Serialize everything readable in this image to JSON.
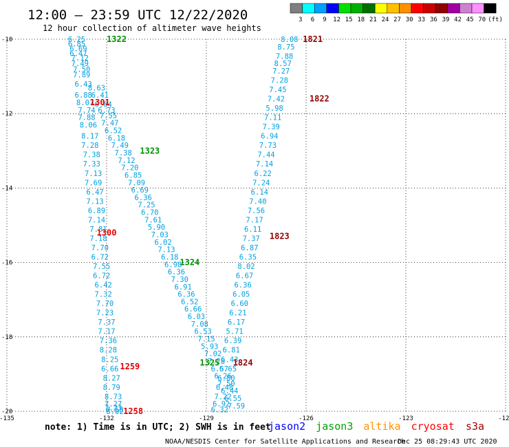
{
  "header": {
    "title": "12:00 – 23:59 UTC 12/22/2020",
    "subtitle": "12 hour collection of altimeter wave heights"
  },
  "colorbar": {
    "bins": [
      {
        "label": "3",
        "color": "#7f7f7f"
      },
      {
        "label": "6",
        "color": "#00ffff"
      },
      {
        "label": "9",
        "color": "#00a0ff"
      },
      {
        "label": "12",
        "color": "#0000ff"
      },
      {
        "label": "15",
        "color": "#00e000"
      },
      {
        "label": "18",
        "color": "#00b000"
      },
      {
        "label": "21",
        "color": "#006f00"
      },
      {
        "label": "24",
        "color": "#ffff00"
      },
      {
        "label": "27",
        "color": "#ffc000"
      },
      {
        "label": "30",
        "color": "#ff9000"
      },
      {
        "label": "33",
        "color": "#ff0000"
      },
      {
        "label": "36",
        "color": "#c80000"
      },
      {
        "label": "39",
        "color": "#900000"
      },
      {
        "label": "42",
        "color": "#a000a0"
      },
      {
        "label": "45",
        "color": "#d080d0"
      },
      {
        "label": "70",
        "color": "#ff90ff"
      },
      {
        "label": "",
        "color": "#000000"
      }
    ],
    "unit": "(ft)"
  },
  "footer": {
    "note": "note: 1) Time is in UTC; 2) SWH is in feet",
    "credit": "NOAA/NESDIS Center for Satellite Applications and Research",
    "timestamp": "Dec 25 08:29:43 UTC 2020",
    "legend": [
      {
        "name": "jason2",
        "color": "#0000ff"
      },
      {
        "name": "jason3",
        "color": "#00a000"
      },
      {
        "name": "altika",
        "color": "#ff9000"
      },
      {
        "name": "cryosat",
        "color": "#ff0000"
      },
      {
        "name": "s3a",
        "color": "#a00000"
      }
    ]
  },
  "chart_data": {
    "type": "scatter",
    "x_ticks": [
      "-135",
      "-132",
      "-129",
      "-126",
      "-123",
      "-120"
    ],
    "y_ticks": [
      "-10",
      "-12",
      "-14",
      "-16",
      "-18",
      "-20"
    ],
    "xlim": [
      -135,
      -120
    ],
    "ylim": [
      -20,
      -10
    ],
    "grid": true,
    "track_labels": [
      {
        "text": "1322",
        "lon": -131.7,
        "lat": -10.0,
        "color": "#009000"
      },
      {
        "text": "1301",
        "lon": -132.2,
        "lat": -11.7,
        "color": "#e00000"
      },
      {
        "text": "1323",
        "lon": -130.7,
        "lat": -13.0,
        "color": "#009000"
      },
      {
        "text": "1300",
        "lon": -132.0,
        "lat": -15.2,
        "color": "#e00000"
      },
      {
        "text": "1324",
        "lon": -129.5,
        "lat": -16.0,
        "color": "#009000"
      },
      {
        "text": "1259",
        "lon": -131.3,
        "lat": -18.8,
        "color": "#e00000"
      },
      {
        "text": "1258",
        "lon": -131.2,
        "lat": -20.0,
        "color": "#e00000"
      },
      {
        "text": "1325",
        "lon": -128.9,
        "lat": -18.7,
        "color": "#009000"
      },
      {
        "text": "1821",
        "lon": -125.8,
        "lat": -10.0,
        "color": "#900000"
      },
      {
        "text": "1822",
        "lon": -125.6,
        "lat": -11.6,
        "color": "#900000"
      },
      {
        "text": "1823",
        "lon": -126.8,
        "lat": -15.3,
        "color": "#900000"
      },
      {
        "text": "1824",
        "lon": -127.9,
        "lat": -18.7,
        "color": "#900000"
      }
    ],
    "series": [
      {
        "name": "",
        "points": [
          {
            "lon": -132.9,
            "lat": -10.0,
            "v": "6.25"
          },
          {
            "lon": -132.9,
            "lat": -10.12,
            "v": "6.85"
          },
          {
            "lon": -132.85,
            "lat": -10.25,
            "v": "6.69"
          },
          {
            "lon": -132.85,
            "lat": -10.38,
            "v": "6.47"
          },
          {
            "lon": -132.8,
            "lat": -10.5,
            "v": "7.12"
          },
          {
            "lon": -132.8,
            "lat": -10.65,
            "v": "7.49"
          },
          {
            "lon": -132.75,
            "lat": -10.8,
            "v": "7.50"
          },
          {
            "lon": -132.75,
            "lat": -10.95,
            "v": "7.89"
          },
          {
            "lon": -132.7,
            "lat": -11.2,
            "v": "6.43"
          },
          {
            "lon": -132.7,
            "lat": -11.5,
            "v": "6.88"
          },
          {
            "lon": -132.65,
            "lat": -11.7,
            "v": "8.07"
          },
          {
            "lon": -132.6,
            "lat": -11.9,
            "v": "7.74"
          },
          {
            "lon": -132.6,
            "lat": -12.1,
            "v": "7.88"
          },
          {
            "lon": -132.55,
            "lat": -12.3,
            "v": "8.06"
          },
          {
            "lon": -132.5,
            "lat": -12.6,
            "v": "8.17"
          },
          {
            "lon": -132.5,
            "lat": -12.85,
            "v": "7.28"
          },
          {
            "lon": -132.45,
            "lat": -13.1,
            "v": "7.38"
          },
          {
            "lon": -132.45,
            "lat": -13.35,
            "v": "7.33"
          },
          {
            "lon": -132.4,
            "lat": -13.6,
            "v": "7.13"
          },
          {
            "lon": -132.4,
            "lat": -13.85,
            "v": "7.69"
          },
          {
            "lon": -132.35,
            "lat": -14.1,
            "v": "6.47"
          },
          {
            "lon": -132.35,
            "lat": -14.35,
            "v": "7.13"
          },
          {
            "lon": -132.3,
            "lat": -14.6,
            "v": "6.89"
          },
          {
            "lon": -132.3,
            "lat": -14.85,
            "v": "7.14"
          },
          {
            "lon": -132.25,
            "lat": -15.1,
            "v": "7.81"
          },
          {
            "lon": -132.25,
            "lat": -15.35,
            "v": "7.18"
          },
          {
            "lon": -132.2,
            "lat": -15.6,
            "v": "7.70"
          },
          {
            "lon": -132.2,
            "lat": -15.85,
            "v": "6.72"
          },
          {
            "lon": -132.15,
            "lat": -16.1,
            "v": "7.55"
          },
          {
            "lon": -132.15,
            "lat": -16.35,
            "v": "6.72"
          },
          {
            "lon": -132.1,
            "lat": -16.6,
            "v": "6.42"
          },
          {
            "lon": -132.1,
            "lat": -16.85,
            "v": "7.32"
          },
          {
            "lon": -132.05,
            "lat": -17.1,
            "v": "7.70"
          },
          {
            "lon": -132.05,
            "lat": -17.35,
            "v": "7.23"
          },
          {
            "lon": -132.0,
            "lat": -17.6,
            "v": "7.37"
          },
          {
            "lon": -132.0,
            "lat": -17.85,
            "v": "7.17"
          },
          {
            "lon": -131.95,
            "lat": -18.1,
            "v": "7.36"
          },
          {
            "lon": -131.95,
            "lat": -18.35,
            "v": "8.28"
          },
          {
            "lon": -131.9,
            "lat": -18.6,
            "v": "8.25"
          },
          {
            "lon": -131.9,
            "lat": -18.85,
            "v": "6.66"
          },
          {
            "lon": -131.85,
            "lat": -19.1,
            "v": "8.27"
          },
          {
            "lon": -131.85,
            "lat": -19.35,
            "v": "8.79"
          },
          {
            "lon": -131.8,
            "lat": -19.6,
            "v": "8.73"
          },
          {
            "lon": -131.8,
            "lat": -19.8,
            "v": "7.27"
          },
          {
            "lon": -131.8,
            "lat": -19.9,
            "v": "7.23"
          },
          {
            "lon": -131.75,
            "lat": -19.95,
            "v": "7.58"
          },
          {
            "lon": -131.75,
            "lat": -20.0,
            "v": "8.02"
          }
        ]
      },
      {
        "name": "",
        "points": [
          {
            "lon": -132.3,
            "lat": -11.3,
            "v": "8.63"
          },
          {
            "lon": -132.2,
            "lat": -11.5,
            "v": "6.41"
          },
          {
            "lon": -132.1,
            "lat": -11.75,
            "v": "6.64"
          },
          {
            "lon": -132.0,
            "lat": -11.9,
            "v": "6.73"
          },
          {
            "lon": -131.95,
            "lat": -12.05,
            "v": "7.55"
          },
          {
            "lon": -131.9,
            "lat": -12.25,
            "v": "7.47"
          },
          {
            "lon": -131.8,
            "lat": -12.45,
            "v": "6.52"
          },
          {
            "lon": -131.7,
            "lat": -12.65,
            "v": "6.18"
          },
          {
            "lon": -131.6,
            "lat": -12.85,
            "v": "7.49"
          },
          {
            "lon": -131.5,
            "lat": -13.05,
            "v": "7.38"
          },
          {
            "lon": -131.4,
            "lat": -13.25,
            "v": "7.12"
          },
          {
            "lon": -131.3,
            "lat": -13.45,
            "v": "7.20"
          },
          {
            "lon": -131.2,
            "lat": -13.65,
            "v": "6.85"
          },
          {
            "lon": -131.1,
            "lat": -13.85,
            "v": "7.09"
          },
          {
            "lon": -131.0,
            "lat": -14.05,
            "v": "6.69"
          },
          {
            "lon": -130.9,
            "lat": -14.25,
            "v": "6.36"
          },
          {
            "lon": -130.8,
            "lat": -14.45,
            "v": "7.25"
          },
          {
            "lon": -130.7,
            "lat": -14.65,
            "v": "6.70"
          },
          {
            "lon": -130.6,
            "lat": -14.85,
            "v": "7.61"
          },
          {
            "lon": -130.5,
            "lat": -15.05,
            "v": "5.90"
          },
          {
            "lon": -130.4,
            "lat": -15.25,
            "v": "7.03"
          },
          {
            "lon": -130.3,
            "lat": -15.45,
            "v": "6.02"
          },
          {
            "lon": -130.2,
            "lat": -15.65,
            "v": "7.13"
          },
          {
            "lon": -130.1,
            "lat": -15.85,
            "v": "6.18"
          },
          {
            "lon": -130.0,
            "lat": -16.05,
            "v": "6.98"
          },
          {
            "lon": -129.9,
            "lat": -16.25,
            "v": "6.36"
          },
          {
            "lon": -129.8,
            "lat": -16.45,
            "v": "7.30"
          },
          {
            "lon": -129.7,
            "lat": -16.65,
            "v": "6.91"
          },
          {
            "lon": -129.6,
            "lat": -16.85,
            "v": "6.36"
          },
          {
            "lon": -129.5,
            "lat": -17.05,
            "v": "6.52"
          },
          {
            "lon": -129.4,
            "lat": -17.25,
            "v": "6.66"
          },
          {
            "lon": -129.3,
            "lat": -17.45,
            "v": "6.03"
          },
          {
            "lon": -129.2,
            "lat": -17.65,
            "v": "7.08"
          },
          {
            "lon": -129.1,
            "lat": -17.85,
            "v": "6.53"
          },
          {
            "lon": -129.0,
            "lat": -18.05,
            "v": "7.15"
          },
          {
            "lon": -128.9,
            "lat": -18.25,
            "v": "5.93"
          },
          {
            "lon": -128.8,
            "lat": -18.45,
            "v": "7.02"
          },
          {
            "lon": -128.7,
            "lat": -18.65,
            "v": "7.28"
          },
          {
            "lon": -128.6,
            "lat": -18.85,
            "v": "6.57"
          },
          {
            "lon": -128.5,
            "lat": -19.05,
            "v": "6.26"
          },
          {
            "lon": -128.4,
            "lat": -19.25,
            "v": "7.50"
          },
          {
            "lon": -128.3,
            "lat": -19.45,
            "v": "6.44"
          },
          {
            "lon": -128.2,
            "lat": -19.65,
            "v": "6.55"
          },
          {
            "lon": -128.1,
            "lat": -19.85,
            "v": "7.59"
          }
        ]
      },
      {
        "name": "",
        "points": [
          {
            "lon": -126.5,
            "lat": -10.0,
            "v": "8.08"
          },
          {
            "lon": -126.6,
            "lat": -10.2,
            "v": "8.75"
          },
          {
            "lon": -126.65,
            "lat": -10.45,
            "v": "7.88"
          },
          {
            "lon": -126.7,
            "lat": -10.65,
            "v": "8.57"
          },
          {
            "lon": -126.75,
            "lat": -10.85,
            "v": "7.27"
          },
          {
            "lon": -126.8,
            "lat": -11.1,
            "v": "7.28"
          },
          {
            "lon": -126.85,
            "lat": -11.35,
            "v": "7.45"
          },
          {
            "lon": -126.9,
            "lat": -11.6,
            "v": "7.42"
          },
          {
            "lon": -126.95,
            "lat": -11.85,
            "v": "5.98"
          },
          {
            "lon": -127.0,
            "lat": -12.1,
            "v": "7.11"
          },
          {
            "lon": -127.05,
            "lat": -12.35,
            "v": "7.39"
          },
          {
            "lon": -127.1,
            "lat": -12.6,
            "v": "6.94"
          },
          {
            "lon": -127.15,
            "lat": -12.85,
            "v": "7.73"
          },
          {
            "lon": -127.2,
            "lat": -13.1,
            "v": "7.44"
          },
          {
            "lon": -127.25,
            "lat": -13.35,
            "v": "7.14"
          },
          {
            "lon": -127.3,
            "lat": -13.6,
            "v": "6.22"
          },
          {
            "lon": -127.35,
            "lat": -13.85,
            "v": "7.24"
          },
          {
            "lon": -127.4,
            "lat": -14.1,
            "v": "6.14"
          },
          {
            "lon": -127.45,
            "lat": -14.35,
            "v": "7.40"
          },
          {
            "lon": -127.5,
            "lat": -14.6,
            "v": "7.56"
          },
          {
            "lon": -127.55,
            "lat": -14.85,
            "v": "7.17"
          },
          {
            "lon": -127.6,
            "lat": -15.1,
            "v": "6.11"
          },
          {
            "lon": -127.65,
            "lat": -15.35,
            "v": "7.37"
          },
          {
            "lon": -127.7,
            "lat": -15.6,
            "v": "6.87"
          },
          {
            "lon": -127.75,
            "lat": -15.85,
            "v": "6.35"
          },
          {
            "lon": -127.8,
            "lat": -16.1,
            "v": "8.02"
          },
          {
            "lon": -127.85,
            "lat": -16.35,
            "v": "6.67"
          },
          {
            "lon": -127.9,
            "lat": -16.6,
            "v": "6.36"
          },
          {
            "lon": -127.95,
            "lat": -16.85,
            "v": "6.05"
          },
          {
            "lon": -128.0,
            "lat": -17.1,
            "v": "6.60"
          },
          {
            "lon": -128.05,
            "lat": -17.35,
            "v": "6.21"
          },
          {
            "lon": -128.1,
            "lat": -17.6,
            "v": "6.17"
          },
          {
            "lon": -128.15,
            "lat": -17.85,
            "v": "5.71"
          },
          {
            "lon": -128.2,
            "lat": -18.1,
            "v": "6.39"
          },
          {
            "lon": -128.25,
            "lat": -18.35,
            "v": "6.81"
          },
          {
            "lon": -128.3,
            "lat": -18.6,
            "v": "6.43"
          },
          {
            "lon": -128.35,
            "lat": -18.85,
            "v": "6.65"
          },
          {
            "lon": -128.4,
            "lat": -19.1,
            "v": "6.80"
          },
          {
            "lon": -128.45,
            "lat": -19.35,
            "v": "6.48"
          },
          {
            "lon": -128.5,
            "lat": -19.6,
            "v": "7.22"
          },
          {
            "lon": -128.55,
            "lat": -19.8,
            "v": "6.92"
          },
          {
            "lon": -128.6,
            "lat": -19.95,
            "v": "6.32"
          }
        ]
      }
    ]
  }
}
